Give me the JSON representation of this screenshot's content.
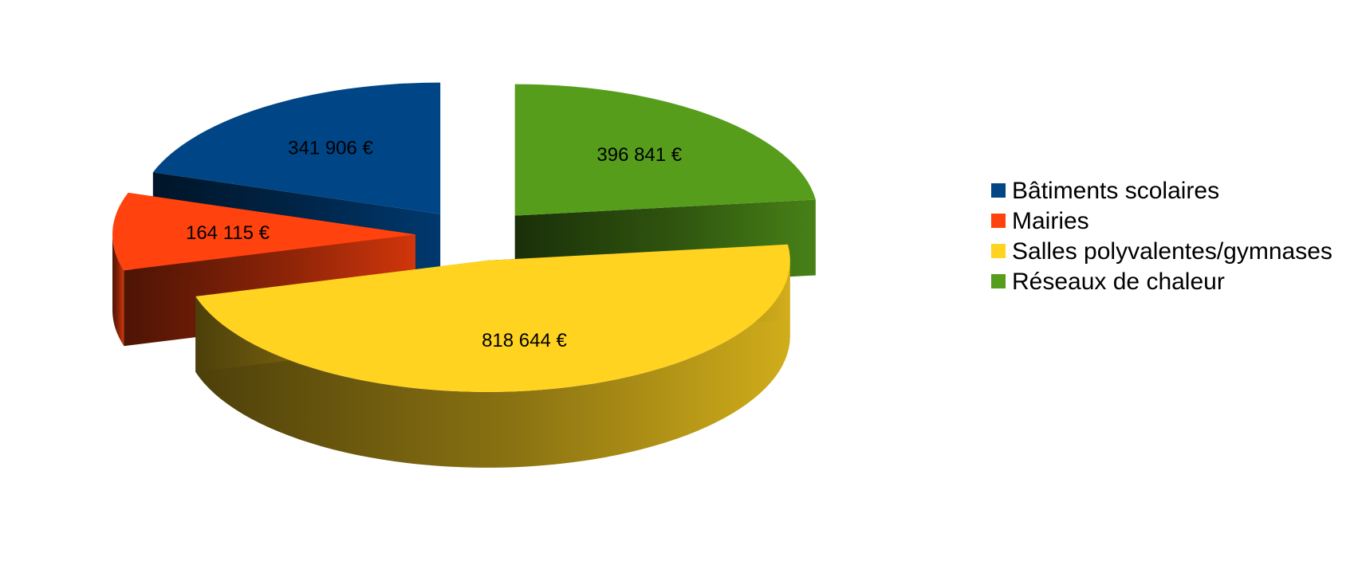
{
  "chart_data": {
    "type": "pie",
    "style": "3d-exploded",
    "title": "",
    "legend_position": "right",
    "categories": [
      "Bâtiments scolaires",
      "Mairies",
      "Salles polyvalentes/gymnases",
      "Réseaux de chaleur"
    ],
    "values": [
      341906,
      164115,
      818644,
      396841
    ],
    "value_labels": [
      "341 906 €",
      "164 115 €",
      "818 644 €",
      "396 841 €"
    ],
    "colors": [
      "#004586",
      "#ff420e",
      "#ffd320",
      "#579d1c"
    ]
  }
}
